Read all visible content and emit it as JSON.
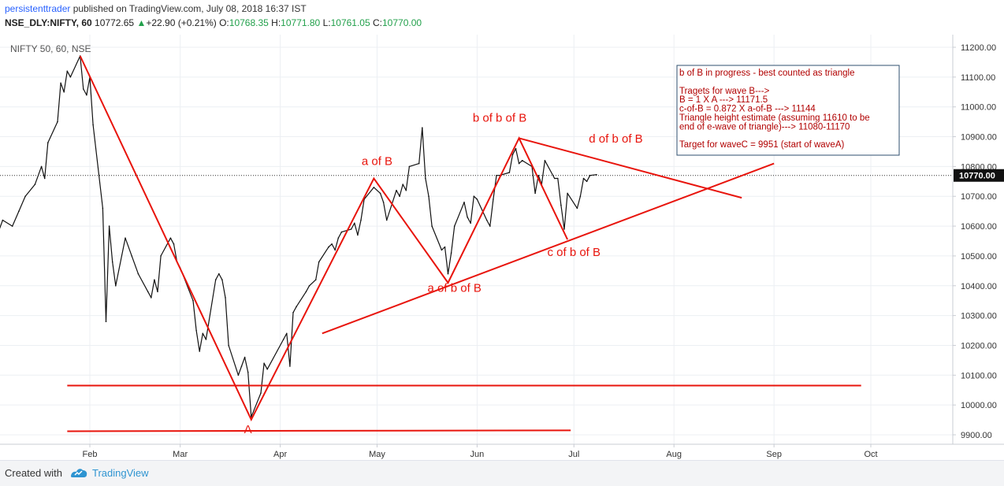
{
  "header": {
    "user": "persistenttrader",
    "published_text": " published on TradingView.com, July 08, 2018 16:37 IST",
    "symbol": "NSE_DLY:NIFTY, 60",
    "last": "10772.65",
    "change_arrow": "▲",
    "change": "+22.90 (+0.21%)",
    "o_label": "O:",
    "o_value": "10768.35",
    "h_label": "H:",
    "h_value": "10771.80",
    "l_label": "L:",
    "l_value": "10761.05",
    "c_label": "C:",
    "c_value": "10770.00"
  },
  "chart_data": {
    "type": "line",
    "title": "NIFTY 50, 60, NSE",
    "ylim": [
      9875,
      11250
    ],
    "y_ticks": [
      "11200.00",
      "11100.00",
      "11000.00",
      "10900.00",
      "10800.00",
      "10700.00",
      "10600.00",
      "10500.00",
      "10400.00",
      "10300.00",
      "10200.00",
      "10100.00",
      "10000.00",
      "9900.00"
    ],
    "y_tick_values": [
      11200,
      11100,
      11000,
      10900,
      10800,
      10700,
      10600,
      10500,
      10400,
      10300,
      10200,
      10100,
      10000,
      9900
    ],
    "x_ticks": [
      "Feb",
      "Mar",
      "Apr",
      "May",
      "Jun",
      "Jul",
      "Aug",
      "Sep",
      "Oct"
    ],
    "x_tick_dates": [
      "2018-02-01",
      "2018-03-01",
      "2018-04-01",
      "2018-05-01",
      "2018-06-01",
      "2018-07-01",
      "2018-08-01",
      "2018-09-01",
      "2018-10-01"
    ],
    "last_price_label": "10770.00",
    "last_price": 10770,
    "series": [
      {
        "values": [
          [
            "2018-01-01",
            10480
          ],
          [
            "2018-01-03",
            10560
          ],
          [
            "2018-01-05",
            10620
          ],
          [
            "2018-01-08",
            10600
          ],
          [
            "2018-01-10",
            10650
          ],
          [
            "2018-01-12",
            10700
          ],
          [
            "2018-01-15",
            10740
          ],
          [
            "2018-01-17",
            10800
          ],
          [
            "2018-01-18",
            10760
          ],
          [
            "2018-01-19",
            10880
          ],
          [
            "2018-01-22",
            10950
          ],
          [
            "2018-01-23",
            11080
          ],
          [
            "2018-01-24",
            11050
          ],
          [
            "2018-01-25",
            11120
          ],
          [
            "2018-01-26",
            11100
          ],
          [
            "2018-01-29",
            11171
          ],
          [
            "2018-01-30",
            11060
          ],
          [
            "2018-01-31",
            11040
          ],
          [
            "2018-02-01",
            11100
          ],
          [
            "2018-02-02",
            10940
          ],
          [
            "2018-02-05",
            10660
          ],
          [
            "2018-02-06",
            10280
          ],
          [
            "2018-02-07",
            10600
          ],
          [
            "2018-02-08",
            10480
          ],
          [
            "2018-02-09",
            10400
          ],
          [
            "2018-02-12",
            10560
          ],
          [
            "2018-02-14",
            10500
          ],
          [
            "2018-02-16",
            10440
          ],
          [
            "2018-02-19",
            10380
          ],
          [
            "2018-02-20",
            10360
          ],
          [
            "2018-02-21",
            10420
          ],
          [
            "2018-02-22",
            10380
          ],
          [
            "2018-02-23",
            10500
          ],
          [
            "2018-02-26",
            10560
          ],
          [
            "2018-02-27",
            10540
          ],
          [
            "2018-02-28",
            10480
          ],
          [
            "2018-03-01",
            10460
          ],
          [
            "2018-03-05",
            10350
          ],
          [
            "2018-03-06",
            10250
          ],
          [
            "2018-03-07",
            10180
          ],
          [
            "2018-03-08",
            10240
          ],
          [
            "2018-03-09",
            10220
          ],
          [
            "2018-03-12",
            10420
          ],
          [
            "2018-03-13",
            10440
          ],
          [
            "2018-03-14",
            10420
          ],
          [
            "2018-03-15",
            10360
          ],
          [
            "2018-03-16",
            10200
          ],
          [
            "2018-03-19",
            10100
          ],
          [
            "2018-03-20",
            10130
          ],
          [
            "2018-03-21",
            10160
          ],
          [
            "2018-03-22",
            10110
          ],
          [
            "2018-03-23",
            9960
          ],
          [
            "2018-03-26",
            10040
          ],
          [
            "2018-03-27",
            10140
          ],
          [
            "2018-03-28",
            10120
          ],
          [
            "2018-04-02",
            10220
          ],
          [
            "2018-04-03",
            10240
          ],
          [
            "2018-04-04",
            10130
          ],
          [
            "2018-04-05",
            10310
          ],
          [
            "2018-04-06",
            10330
          ],
          [
            "2018-04-09",
            10380
          ],
          [
            "2018-04-10",
            10400
          ],
          [
            "2018-04-12",
            10420
          ],
          [
            "2018-04-13",
            10480
          ],
          [
            "2018-04-16",
            10530
          ],
          [
            "2018-04-17",
            10540
          ],
          [
            "2018-04-18",
            10520
          ],
          [
            "2018-04-19",
            10560
          ],
          [
            "2018-04-20",
            10580
          ],
          [
            "2018-04-23",
            10590
          ],
          [
            "2018-04-24",
            10610
          ],
          [
            "2018-04-25",
            10570
          ],
          [
            "2018-04-26",
            10620
          ],
          [
            "2018-04-27",
            10690
          ],
          [
            "2018-04-30",
            10730
          ],
          [
            "2018-05-02",
            10710
          ],
          [
            "2018-05-03",
            10680
          ],
          [
            "2018-05-04",
            10620
          ],
          [
            "2018-05-07",
            10720
          ],
          [
            "2018-05-08",
            10700
          ],
          [
            "2018-05-09",
            10740
          ],
          [
            "2018-05-10",
            10720
          ],
          [
            "2018-05-11",
            10800
          ],
          [
            "2018-05-14",
            10810
          ],
          [
            "2018-05-15",
            10930
          ],
          [
            "2018-05-16",
            10760
          ],
          [
            "2018-05-17",
            10700
          ],
          [
            "2018-05-18",
            10600
          ],
          [
            "2018-05-21",
            10520
          ],
          [
            "2018-05-22",
            10530
          ],
          [
            "2018-05-23",
            10440
          ],
          [
            "2018-05-24",
            10510
          ],
          [
            "2018-05-25",
            10600
          ],
          [
            "2018-05-28",
            10680
          ],
          [
            "2018-05-29",
            10630
          ],
          [
            "2018-05-30",
            10610
          ],
          [
            "2018-05-31",
            10700
          ],
          [
            "2018-06-01",
            10690
          ],
          [
            "2018-06-04",
            10620
          ],
          [
            "2018-06-05",
            10600
          ],
          [
            "2018-06-06",
            10690
          ],
          [
            "2018-06-07",
            10770
          ],
          [
            "2018-06-08",
            10770
          ],
          [
            "2018-06-11",
            10780
          ],
          [
            "2018-06-12",
            10840
          ],
          [
            "2018-06-13",
            10860
          ],
          [
            "2018-06-14",
            10810
          ],
          [
            "2018-06-15",
            10820
          ],
          [
            "2018-06-18",
            10800
          ],
          [
            "2018-06-19",
            10710
          ],
          [
            "2018-06-20",
            10770
          ],
          [
            "2018-06-21",
            10740
          ],
          [
            "2018-06-22",
            10820
          ],
          [
            "2018-06-25",
            10760
          ],
          [
            "2018-06-26",
            10760
          ],
          [
            "2018-06-27",
            10670
          ],
          [
            "2018-06-28",
            10590
          ],
          [
            "2018-06-29",
            10710
          ],
          [
            "2018-07-02",
            10660
          ],
          [
            "2018-07-03",
            10700
          ],
          [
            "2018-07-04",
            10760
          ],
          [
            "2018-07-05",
            10750
          ],
          [
            "2018-07-06",
            10770
          ],
          [
            "2018-07-08",
            10772.65
          ]
        ]
      }
    ],
    "drawings": {
      "wave_lines": [
        [
          [
            "2018-01-29",
            11171
          ],
          [
            "2018-03-23",
            9951
          ],
          [
            "2018-04-30",
            10760
          ],
          [
            "2018-05-23",
            10410
          ],
          [
            "2018-06-14",
            10895
          ],
          [
            "2018-06-29",
            10555
          ]
        ]
      ],
      "trend_lines": [
        [
          [
            "2018-04-14",
            10240
          ],
          [
            "2018-09-01",
            10810
          ]
        ],
        [
          [
            "2018-06-14",
            10895
          ],
          [
            "2018-08-22",
            10695
          ]
        ],
        [
          [
            "2018-01-25",
            10065
          ],
          [
            "2018-09-28",
            10065
          ]
        ],
        [
          [
            "2018-01-25",
            9912
          ],
          [
            "2018-06-30",
            9915
          ]
        ]
      ]
    },
    "annotations": [
      {
        "text": "A",
        "x": "2018-03-22",
        "y": 9905
      },
      {
        "text": "a of B",
        "x": "2018-05-01",
        "y": 10805
      },
      {
        "text": "a of b of B",
        "x": "2018-05-25",
        "y": 10380
      },
      {
        "text": "b of b of B",
        "x": "2018-06-08",
        "y": 10950
      },
      {
        "text": "c of b of B",
        "x": "2018-07-01",
        "y": 10500
      },
      {
        "text": "d of b of B",
        "x": "2018-07-14",
        "y": 10880
      }
    ],
    "note_box": {
      "lines": [
        "b of B in progress - best counted as triangle",
        "",
        "Tragets for wave B--->",
        "B = 1 X A ---> 11171.5",
        "c-of-B = 0.872 X a-of-B ---> 11144",
        "Triangle height estimate (assuming 11610 to be",
        "end of e-wave of triangle)---> 11080-11170",
        "",
        "Target for waveC = 9951 (start of waveA)"
      ]
    },
    "colors": {
      "drawing": "#e8140c",
      "price": "#111111",
      "grid": "#eceff3",
      "note_text": "#b10000"
    }
  },
  "footer": {
    "created_with": "Created with",
    "brand": "TradingView"
  }
}
